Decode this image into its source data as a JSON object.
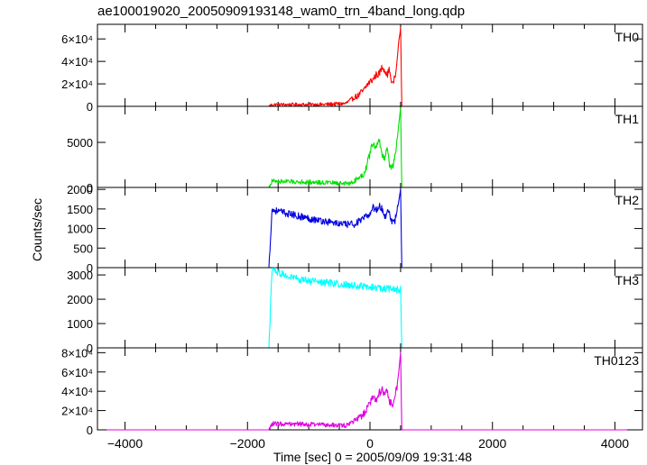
{
  "chart_data": {
    "title": "ae100019020_20050909193148_wam0_trn_4band_long.qdp",
    "xlabel": "Time [sec] 0 = 2005/09/09 19:31:48",
    "ylabel": "Counts/sec",
    "x_ticks": [
      "−4000",
      "−2000",
      "0",
      "2000",
      "4000"
    ],
    "x_tick_values": [
      -4000,
      -2000,
      0,
      2000,
      4000
    ],
    "xlim": [
      -4450,
      4450
    ],
    "panels": [
      {
        "type": "line",
        "name": "TH0",
        "color": "#ff0000",
        "ylim": [
          0,
          73000
        ],
        "y_tick_values": [
          0,
          20000,
          40000,
          60000
        ],
        "y_tick_labels": [
          "0",
          "2×10⁴",
          "4×10⁴",
          "6×10⁴"
        ],
        "x": [
          -4300,
          -1650,
          -1600,
          -800,
          -400,
          -300,
          -250,
          -200,
          -150,
          -100,
          -50,
          0,
          50,
          100,
          150,
          200,
          240,
          280,
          320,
          350,
          380,
          420,
          450,
          470,
          490,
          500,
          520,
          4200
        ],
        "y": [
          0,
          0,
          1500,
          1600,
          2500,
          6000,
          8500,
          9000,
          12000,
          14000,
          19000,
          22000,
          24000,
          28000,
          29000,
          35000,
          33000,
          28000,
          33000,
          21000,
          22000,
          28000,
          45000,
          58000,
          65000,
          70000,
          0,
          0
        ]
      },
      {
        "type": "line",
        "name": "TH1",
        "color": "#00e000",
        "ylim": [
          0,
          9000
        ],
        "y_tick_values": [
          0,
          5000
        ],
        "y_tick_labels": [
          "0",
          "5000"
        ],
        "x": [
          -4300,
          -1650,
          -1600,
          -800,
          -400,
          -300,
          -200,
          -100,
          -50,
          0,
          50,
          100,
          150,
          200,
          240,
          280,
          320,
          360,
          400,
          440,
          470,
          500,
          520,
          4200
        ],
        "y": [
          0,
          0,
          700,
          550,
          450,
          500,
          1000,
          1500,
          2500,
          3800,
          5100,
          4200,
          5400,
          3500,
          3200,
          4600,
          2500,
          2000,
          3200,
          5000,
          7000,
          8800,
          0,
          0
        ]
      },
      {
        "type": "line",
        "name": "TH2",
        "color": "#0000e0",
        "ylim": [
          0,
          2050
        ],
        "y_tick_values": [
          0,
          500,
          1000,
          1500,
          2000
        ],
        "y_tick_labels": [
          "0",
          "500",
          "1000",
          "1500",
          "2000"
        ],
        "x": [
          -4300,
          -1650,
          -1600,
          -1400,
          -1200,
          -1000,
          -800,
          -600,
          -400,
          -250,
          -100,
          0,
          50,
          100,
          150,
          200,
          250,
          300,
          350,
          400,
          450,
          480,
          500,
          520,
          4200
        ],
        "y": [
          0,
          0,
          1480,
          1400,
          1330,
          1260,
          1200,
          1150,
          1100,
          1120,
          1250,
          1380,
          1560,
          1450,
          1600,
          1480,
          1300,
          1500,
          1200,
          1150,
          1500,
          1800,
          2000,
          0,
          0
        ]
      },
      {
        "type": "line",
        "name": "TH3",
        "color": "#00ffff",
        "ylim": [
          0,
          3300
        ],
        "y_tick_values": [
          0,
          1000,
          2000,
          3000
        ],
        "y_tick_labels": [
          "0",
          "1000",
          "2000",
          "3000"
        ],
        "x": [
          -4300,
          -1650,
          -1600,
          -1400,
          -1200,
          -1000,
          -800,
          -600,
          -400,
          -200,
          0,
          200,
          400,
          500,
          520,
          4200
        ],
        "y": [
          0,
          0,
          3200,
          3000,
          2850,
          2750,
          2700,
          2650,
          2600,
          2550,
          2500,
          2450,
          2400,
          2400,
          0,
          0
        ]
      },
      {
        "type": "line",
        "name": "TH0123",
        "color": "#e000e0",
        "ylim": [
          0,
          85000
        ],
        "y_tick_values": [
          0,
          20000,
          40000,
          60000,
          80000
        ],
        "y_tick_labels": [
          "0",
          "2×10⁴",
          "4×10⁴",
          "6×10⁴",
          "8×10⁴"
        ],
        "x": [
          -4300,
          -1650,
          -1600,
          -800,
          -400,
          -300,
          -200,
          -100,
          -50,
          0,
          50,
          100,
          150,
          200,
          240,
          280,
          320,
          360,
          400,
          440,
          470,
          500,
          520,
          4200
        ],
        "y": [
          0,
          0,
          6500,
          5500,
          4500,
          7000,
          12000,
          16000,
          22000,
          28000,
          34000,
          31000,
          38000,
          42000,
          35000,
          40000,
          30000,
          26000,
          32000,
          45000,
          60000,
          80000,
          0,
          0
        ]
      }
    ]
  }
}
